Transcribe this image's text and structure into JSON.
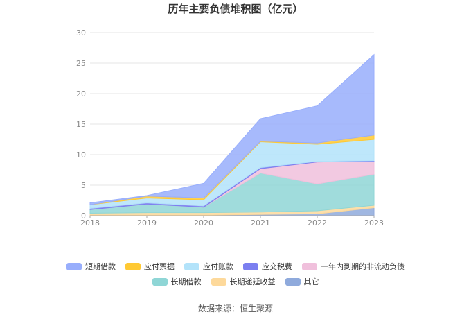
{
  "chart_data": {
    "type": "area",
    "title": "历年主要负债堆积图（亿元）",
    "x": [
      "2018",
      "2019",
      "2020",
      "2021",
      "2022",
      "2023"
    ],
    "ylim": [
      0,
      30
    ],
    "yticks": [
      "0",
      "5",
      "10",
      "15",
      "20",
      "25",
      "30"
    ],
    "grid": true,
    "stacked": true,
    "legend_position": "bottom",
    "series": [
      {
        "name": "其它",
        "color": "#8faadc",
        "values": [
          0.1,
          0.1,
          0.1,
          0.2,
          0.3,
          1.3
        ]
      },
      {
        "name": "长期递延收益",
        "color": "#fdd99b",
        "values": [
          0.3,
          0.4,
          0.4,
          0.4,
          0.5,
          0.4
        ]
      },
      {
        "name": "长期借款",
        "color": "#8fd6d6",
        "values": [
          0.6,
          1.4,
          0.9,
          6.4,
          4.4,
          5.1
        ]
      },
      {
        "name": "一年内到期的非流动负债",
        "color": "#f0c0dc",
        "values": [
          0.0,
          0.0,
          0.0,
          0.7,
          3.6,
          2.1
        ]
      },
      {
        "name": "应交税费",
        "color": "#7b7ff0",
        "values": [
          0.2,
          0.2,
          0.2,
          0.2,
          0.1,
          0.1
        ]
      },
      {
        "name": "应付账款",
        "color": "#b3e3fa",
        "values": [
          0.6,
          0.8,
          1.0,
          4.2,
          2.8,
          3.5
        ]
      },
      {
        "name": "应付票据",
        "color": "#ffc933",
        "values": [
          0.0,
          0.3,
          0.3,
          0.1,
          0.2,
          0.7
        ]
      },
      {
        "name": "短期借款",
        "color": "#98aefc",
        "values": [
          0.3,
          0.1,
          2.4,
          3.7,
          6.1,
          13.2
        ]
      }
    ]
  },
  "legend": {
    "row1": [
      "短期借款",
      "应付票据",
      "应付账款",
      "应交税费",
      "一年内到期的非流动负债"
    ],
    "row2": [
      "长期借款",
      "长期递延收益",
      "其它"
    ]
  },
  "source": "数据来源：恒生聚源"
}
